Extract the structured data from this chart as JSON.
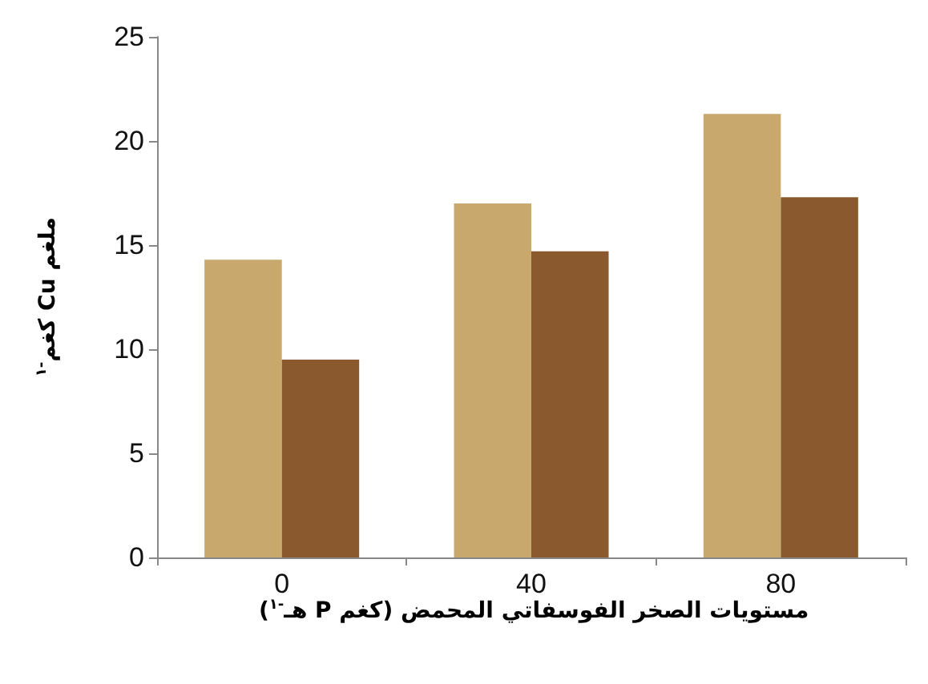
{
  "chart_data": {
    "type": "bar",
    "categories": [
      "0",
      "40",
      "80"
    ],
    "series": [
      {
        "color": "#c9a86e",
        "values": [
          14.3,
          17.0,
          21.3
        ]
      },
      {
        "color": "#8a5a2e",
        "values": [
          9.5,
          14.7,
          17.3
        ]
      }
    ],
    "xlabel": "مستويات الصخر الفوسفاتي المحمض (كغم P هـ$^{-١}$)",
    "ylabel": "ملغم Cu كغم$^{-١}$",
    "ylim": [
      0,
      25
    ],
    "yticks": [
      0,
      5,
      10,
      15,
      20,
      25
    ],
    "grid": false
  }
}
